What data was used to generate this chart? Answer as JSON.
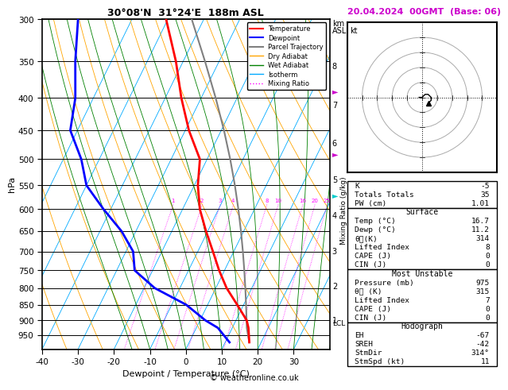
{
  "title_left": "30°08'N  31°24'E  188m ASL",
  "title_right": "20.04.2024  00GMT  (Base: 06)",
  "xlabel": "Dewpoint / Temperature (°C)",
  "ylabel_left": "hPa",
  "pressure_major": [
    300,
    350,
    400,
    450,
    500,
    550,
    600,
    650,
    700,
    750,
    800,
    850,
    900,
    950
  ],
  "km_labels": [
    8,
    7,
    6,
    5,
    4,
    3,
    2,
    1
  ],
  "km_pressures": [
    356,
    411,
    472,
    540,
    615,
    700,
    795,
    900
  ],
  "mixing_ratio_values": [
    1,
    2,
    3,
    4,
    8,
    10,
    16,
    20,
    25
  ],
  "mixing_ratio_label_str": [
    "1",
    "2",
    "3",
    "4",
    "8",
    "10",
    "16",
    "20",
    "25"
  ],
  "lcl_pressure": 910,
  "temp_color": "#ff0000",
  "dewp_color": "#0000ff",
  "parcel_color": "#808080",
  "dry_adiabat_color": "#ffa500",
  "wet_adiabat_color": "#008000",
  "isotherm_color": "#00aaff",
  "mixing_ratio_color": "#ff00ff",
  "skew_factor": 45,
  "p_min": 300,
  "p_max": 1000,
  "legend_items": [
    {
      "label": "Temperature",
      "color": "#ff0000"
    },
    {
      "label": "Dewpoint",
      "color": "#0000ff"
    },
    {
      "label": "Parcel Trajectory",
      "color": "#808080"
    },
    {
      "label": "Dry Adiabat",
      "color": "#ffa500"
    },
    {
      "label": "Wet Adiabat",
      "color": "#008000"
    },
    {
      "label": "Isotherm",
      "color": "#00aaff"
    },
    {
      "label": "Mixing Ratio",
      "color": "#ff00ff"
    }
  ],
  "copyright": "© weatheronline.co.uk",
  "stats_rows": [
    [
      "K",
      "-5"
    ],
    [
      "Totals Totals",
      "35"
    ],
    [
      "PW (cm)",
      "1.01"
    ]
  ],
  "surface_rows": [
    [
      "Temp (°C)",
      "16.7"
    ],
    [
      "Dewp (°C)",
      "11.2"
    ],
    [
      "θᴁ(K)",
      "314"
    ],
    [
      "Lifted Index",
      "8"
    ],
    [
      "CAPE (J)",
      "0"
    ],
    [
      "CIN (J)",
      "0"
    ]
  ],
  "unstable_rows": [
    [
      "Pressure (mb)",
      "975"
    ],
    [
      "θᴁ (K)",
      "315"
    ],
    [
      "Lifted Index",
      "7"
    ],
    [
      "CAPE (J)",
      "0"
    ],
    [
      "CIN (J)",
      "0"
    ]
  ],
  "hodo_rows": [
    [
      "EH",
      "-67"
    ],
    [
      "SREH",
      "-42"
    ],
    [
      "StmDir",
      "314°"
    ],
    [
      "StmSpd (kt)",
      "11"
    ]
  ],
  "p_snd": [
    975,
    925,
    900,
    850,
    800,
    750,
    700,
    650,
    600,
    550,
    500,
    450,
    400,
    350,
    300
  ],
  "T_snd": [
    16.7,
    14.5,
    13.0,
    8.2,
    3.0,
    -1.5,
    -5.8,
    -10.5,
    -15.2,
    -19.0,
    -22.0,
    -29.0,
    -35.5,
    -42.0,
    -50.5
  ],
  "Td_snd": [
    11.2,
    6.0,
    1.5,
    -6.0,
    -17.0,
    -25.0,
    -28.0,
    -34.0,
    -42.0,
    -50.0,
    -55.0,
    -62.0,
    -65.0,
    -70.0,
    -75.0
  ]
}
